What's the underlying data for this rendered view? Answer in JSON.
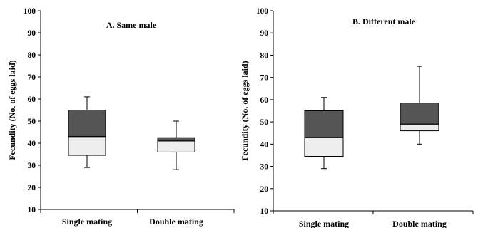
{
  "chart_data": [
    {
      "type": "box",
      "title": "A. Same male",
      "ylabel": "Fecundity (No. of eggs laid)",
      "xlabel": "",
      "ylim": [
        10,
        100
      ],
      "yticks": [
        10,
        20,
        30,
        40,
        50,
        60,
        70,
        80,
        90,
        100
      ],
      "categories": [
        "Single mating",
        "Double mating"
      ],
      "boxes": [
        {
          "category": "Single mating",
          "min": 29,
          "q1": 34.5,
          "median": 43,
          "q3": 55,
          "max": 61
        },
        {
          "category": "Double mating",
          "min": 28,
          "q1": 36,
          "median": 41,
          "q3": 42.5,
          "max": 50
        }
      ],
      "colors": {
        "upper_box": "#555555",
        "lower_box": "#eeeeee"
      },
      "grid": false
    },
    {
      "type": "box",
      "title": "B. Different male",
      "ylabel": "Fecundity (No. of eggs laid)",
      "xlabel": "",
      "ylim": [
        10,
        100
      ],
      "yticks": [
        10,
        20,
        30,
        40,
        50,
        60,
        70,
        80,
        90,
        100
      ],
      "categories": [
        "Single mating",
        "Double mating"
      ],
      "boxes": [
        {
          "category": "Single mating",
          "min": 29,
          "q1": 34.5,
          "median": 43,
          "q3": 55,
          "max": 61
        },
        {
          "category": "Double mating",
          "min": 40,
          "q1": 46,
          "median": 49,
          "q3": 58.5,
          "max": 75
        }
      ],
      "colors": {
        "upper_box": "#555555",
        "lower_box": "#eeeeee"
      },
      "grid": false
    }
  ]
}
